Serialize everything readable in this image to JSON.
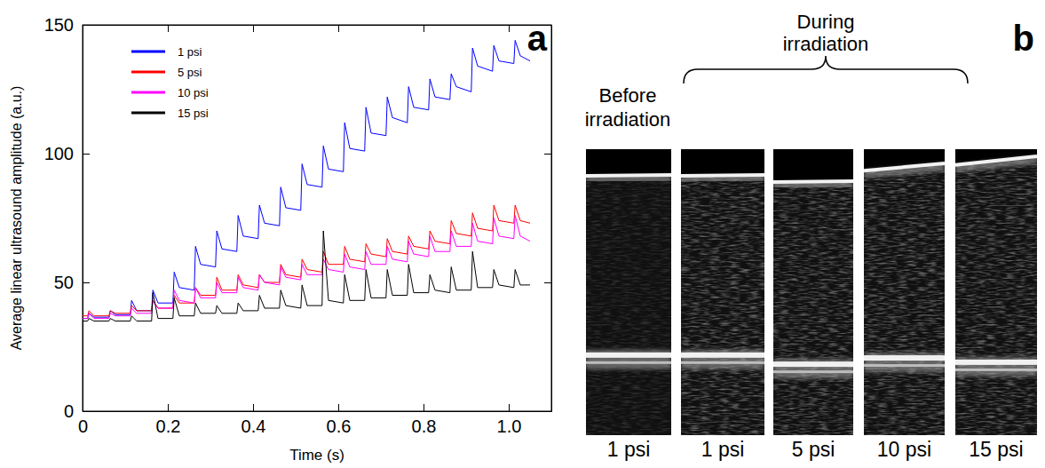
{
  "chart_data": {
    "type": "line",
    "annotations": [
      "a"
    ],
    "xlabel": "Time (s)",
    "ylabel": "Average linear ultrasound amplitude (a.u.)",
    "xlim": [
      0,
      1.1
    ],
    "xticks": [
      0,
      0.2,
      0.4,
      0.6,
      0.8,
      {
        "value": 1,
        "label": "1.0"
      }
    ],
    "ylim": [
      0,
      150
    ],
    "yticks": [
      0,
      50,
      100,
      150
    ],
    "legend": "top-left",
    "x": [
      0,
      0.012,
      0.015,
      0.027,
      0.062,
      0.065,
      0.077,
      0.112,
      0.115,
      0.127,
      0.162,
      0.165,
      0.177,
      0.212,
      0.215,
      0.227,
      0.262,
      0.265,
      0.277,
      0.312,
      0.315,
      0.327,
      0.362,
      0.365,
      0.377,
      0.412,
      0.415,
      0.427,
      0.462,
      0.465,
      0.477,
      0.512,
      0.515,
      0.527,
      0.562,
      0.565,
      0.577,
      0.612,
      0.615,
      0.627,
      0.662,
      0.665,
      0.677,
      0.712,
      0.715,
      0.727,
      0.762,
      0.765,
      0.777,
      0.812,
      0.815,
      0.827,
      0.862,
      0.865,
      0.877,
      0.912,
      0.915,
      0.927,
      0.962,
      0.965,
      0.977,
      1.012,
      1.015,
      1.027,
      1.05
    ],
    "series": [
      {
        "name": "1 psi",
        "color": "#0000ff",
        "values": [
          36,
          36,
          38,
          36.5,
          36.5,
          39,
          37.5,
          37.5,
          43,
          39,
          39,
          47,
          42,
          42,
          54,
          48,
          47,
          64,
          57,
          56,
          70,
          63,
          62,
          76,
          68,
          67,
          80,
          73,
          72,
          87,
          79,
          78,
          96,
          88,
          87,
          103,
          94,
          93,
          112,
          102,
          101,
          118,
          108,
          107,
          122,
          114,
          112,
          126,
          118,
          117,
          129,
          122,
          121,
          131,
          126,
          124,
          141,
          134,
          132,
          142,
          136,
          135,
          144,
          138,
          136
        ]
      },
      {
        "name": "5 psi",
        "color": "#ff0000",
        "values": [
          37,
          37,
          39,
          37,
          37,
          39,
          38,
          38,
          41,
          39,
          39,
          43,
          40,
          40,
          45,
          42,
          42,
          48,
          45,
          45,
          52,
          47,
          47,
          53,
          49,
          48,
          53,
          50,
          50,
          57,
          53,
          52,
          59,
          55,
          54,
          62,
          57,
          57,
          64,
          59,
          58,
          65,
          61,
          60,
          67,
          62,
          61,
          68,
          64,
          63,
          70,
          66,
          65,
          74,
          69,
          68,
          77,
          71,
          70,
          80,
          74,
          73,
          80,
          74,
          73
        ]
      },
      {
        "name": "10 psi",
        "color": "#ff00ff",
        "values": [
          36,
          36,
          38,
          36,
          36,
          38,
          37,
          37,
          40,
          38,
          38,
          43,
          40,
          40,
          47,
          43,
          42,
          48,
          44,
          44,
          50,
          46,
          46,
          52,
          48,
          47,
          53,
          50,
          49,
          56,
          52,
          51,
          57,
          53,
          53,
          59,
          55,
          54,
          61,
          56,
          55,
          62,
          57,
          57,
          64,
          59,
          58,
          66,
          61,
          60,
          68,
          62,
          62,
          70,
          64,
          64,
          73,
          66,
          65,
          75,
          68,
          67,
          76,
          68,
          66
        ]
      },
      {
        "name": "15 psi",
        "color": "#000000",
        "values": [
          35,
          35,
          36,
          35,
          35,
          36,
          35,
          35,
          37,
          35,
          35,
          46,
          36,
          36,
          44,
          37,
          37,
          42,
          38,
          38,
          41,
          38,
          38,
          42,
          39,
          39,
          45,
          40,
          40,
          47,
          41,
          40,
          49,
          41,
          41,
          70,
          43,
          42,
          53,
          43,
          43,
          55,
          44,
          44,
          55,
          45,
          45,
          57,
          46,
          46,
          53,
          47,
          46,
          56,
          47,
          47,
          62,
          48,
          48,
          55,
          49,
          48,
          55,
          49,
          49
        ]
      }
    ]
  },
  "images": {
    "label": "b",
    "groups": [
      {
        "label": "Before irradiation",
        "frames": [
          "1 psi"
        ]
      },
      {
        "label": "During irradiation",
        "frames": [
          "1 psi",
          "5 psi",
          "10 psi",
          "15 psi"
        ]
      }
    ]
  }
}
